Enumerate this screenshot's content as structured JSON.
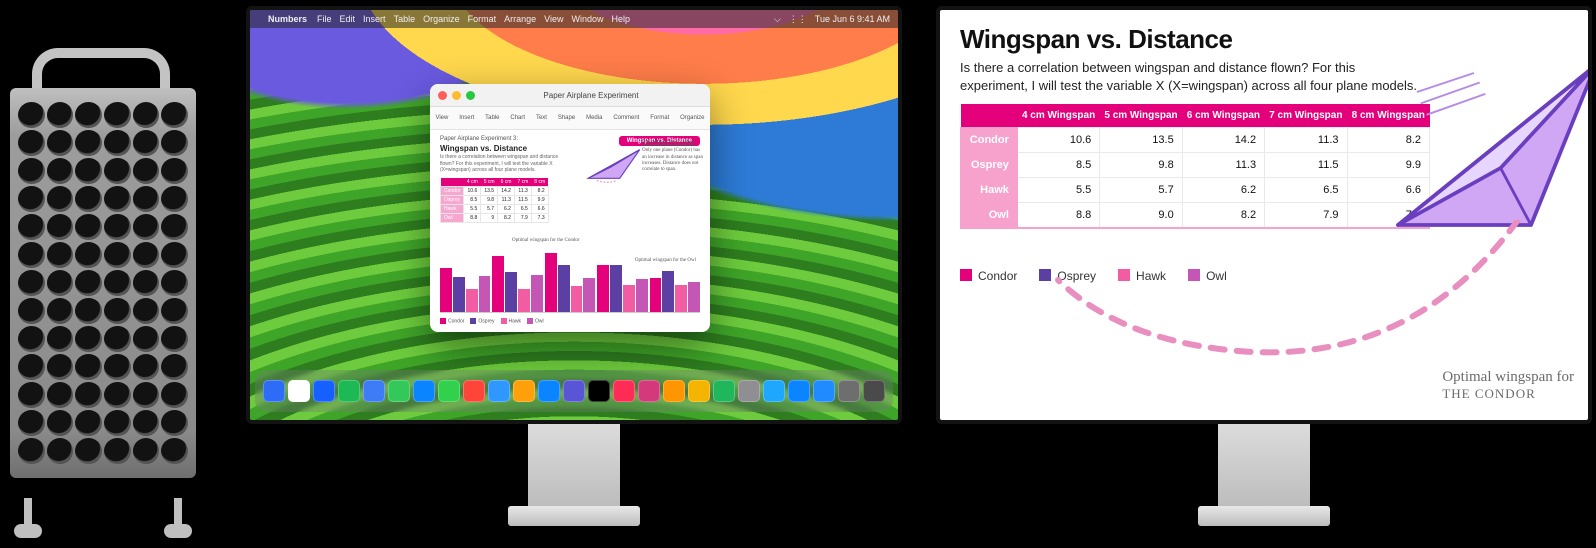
{
  "colors": {
    "magenta": "#e3007a",
    "pink": "#f7a1cd",
    "purple": "#5b3fa3",
    "owl": "#c457b5",
    "plane_fill": "#cfa7f5",
    "plane_stroke": "#6a3fbf",
    "trail": "#e98fc0"
  },
  "menubar": {
    "app": "Numbers",
    "items": [
      "File",
      "Edit",
      "Insert",
      "Table",
      "Organize",
      "Format",
      "Arrange",
      "View",
      "Window",
      "Help"
    ],
    "clock": "Tue Jun 6  9:41 AM"
  },
  "toolbar_items": [
    "View",
    "Insert",
    "Table",
    "Chart",
    "Text",
    "Shape",
    "Media",
    "Comment",
    "Format",
    "Organize"
  ],
  "app_title": "Paper Airplane Experiment",
  "mini_doc": {
    "pre_title": "Paper Airplane Experiment 3:",
    "title": "Wingspan vs. Distance",
    "blurb": "Is there a correlation between wingspan and distance flown? For this experiment, I will test the variable X (X=wingspan) across all four plane models.",
    "pill": "Wingspan vs. Distance",
    "notes_heading": "Interesting Observations",
    "notes_body": "Only one plane (Condor) has an increase in distance as span increases. Distance does not correlate to span.",
    "anno1": "Optimal wingspan for the Condor",
    "anno2": "Optimal wingspan for the Owl"
  },
  "legend": [
    "Condor",
    "Osprey",
    "Hawk",
    "Owl"
  ],
  "legend_colors": [
    "#e3007a",
    "#5b3fa3",
    "#f25ca2",
    "#c457b5"
  ],
  "table": {
    "columns": [
      "4 cm Wingspan",
      "5 cm Wingspan",
      "6 cm Wingspan",
      "7 cm Wingspan",
      "8 cm Wingspan"
    ],
    "rows": [
      {
        "name": "Condor",
        "vals": [
          10.6,
          13.5,
          14.2,
          11.3,
          8.2
        ]
      },
      {
        "name": "Osprey",
        "vals": [
          8.5,
          9.8,
          11.3,
          11.5,
          9.9
        ]
      },
      {
        "name": "Hawk",
        "vals": [
          5.5,
          5.7,
          6.2,
          6.5,
          6.6
        ]
      },
      {
        "name": "Owl",
        "vals": [
          8.8,
          9.0,
          8.2,
          7.9,
          7.3
        ]
      }
    ]
  },
  "chart": {
    "type": "bar-grouped",
    "groups": [
      "4 cm",
      "5 cm",
      "6 cm",
      "7 cm",
      "8 cm"
    ],
    "series": [
      "Condor",
      "Osprey",
      "Hawk",
      "Owl"
    ],
    "series_colors": [
      "#e3007a",
      "#5b3fa3",
      "#f25ca2",
      "#c457b5"
    ],
    "y_max": 16,
    "values": [
      [
        10.6,
        8.5,
        5.5,
        8.8
      ],
      [
        13.5,
        9.8,
        5.7,
        9.0
      ],
      [
        14.2,
        11.3,
        6.2,
        8.2
      ],
      [
        11.3,
        11.5,
        6.5,
        7.9
      ],
      [
        8.2,
        9.9,
        6.6,
        7.3
      ]
    ]
  },
  "doc2": {
    "title": "Wingspan vs. Distance",
    "lead": "Is there a correlation between wingspan and distance flown? For this experiment, I will test the variable X (X=wingspan) across all four plane models.",
    "handnote_l1": "Optimal wingspan for",
    "handnote_l2": "THE CONDOR"
  },
  "dock_colors": [
    "#2c6cf6",
    "#ffffff",
    "#1560ff",
    "#1db954",
    "#3d7bf7",
    "#34c759",
    "#0a84ff",
    "#32d14d",
    "#ff453a",
    "#2f98ff",
    "#ff9f0a",
    "#0a84ff",
    "#5856d6",
    "#000000",
    "#ff2d55",
    "#d43a7b",
    "#ff9500",
    "#f4b400",
    "#1fb65c",
    "#8e8e93",
    "#1ea7fd",
    "#0a84ff",
    "#1f8bff",
    "#6e6e6e",
    "#4a4a4a"
  ]
}
